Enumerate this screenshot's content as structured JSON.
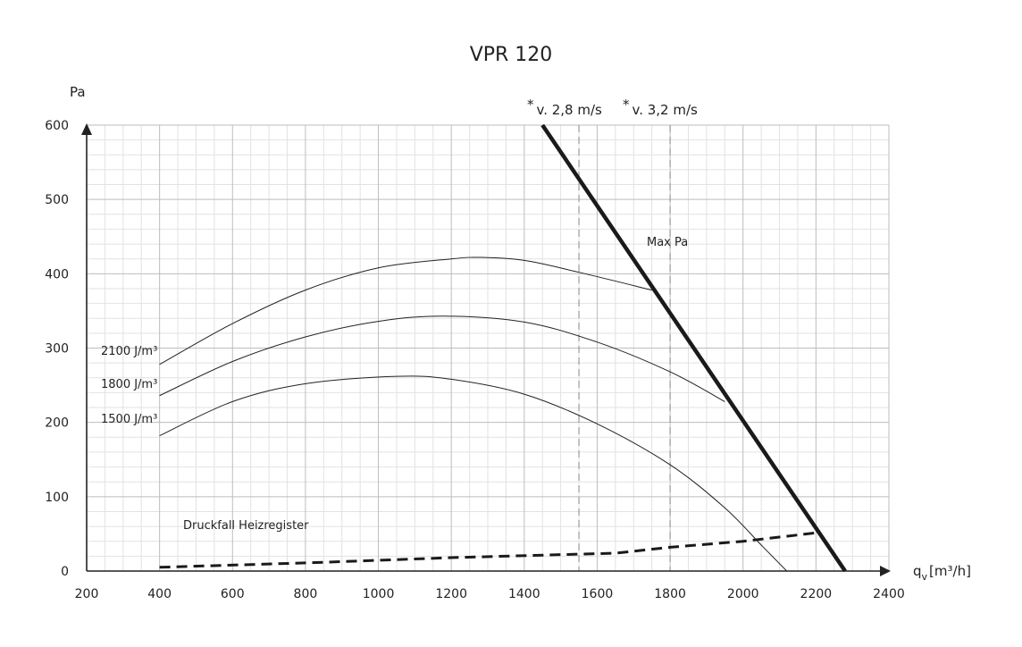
{
  "chart_data": {
    "type": "line",
    "title": "VPR 120",
    "xlabel": "q",
    "xlabel_sub": "v",
    "xlabel_unit": "[m³/h]",
    "ylabel": "Pa",
    "xlim": [
      200,
      2400
    ],
    "ylim": [
      0,
      600
    ],
    "x_ticks": [
      200,
      400,
      600,
      800,
      1000,
      1200,
      1400,
      1600,
      1800,
      2000,
      2200,
      2400
    ],
    "y_ticks": [
      0,
      100,
      200,
      300,
      400,
      500,
      600
    ],
    "grid": true,
    "series": [
      {
        "name": "2100 J/m³",
        "x": [
          400,
          600,
          800,
          1000,
          1200,
          1280,
          1400,
          1550,
          1750
        ],
        "y": [
          278,
          333,
          378,
          408,
          420,
          422,
          418,
          402,
          378
        ]
      },
      {
        "name": "1800 J/m³",
        "x": [
          400,
          600,
          800,
          1000,
          1180,
          1400,
          1600,
          1800,
          1950
        ],
        "y": [
          236,
          282,
          315,
          336,
          343,
          335,
          308,
          268,
          228
        ]
      },
      {
        "name": "1500 J/m³",
        "x": [
          400,
          600,
          800,
          1050,
          1200,
          1400,
          1600,
          1800,
          1950,
          2050,
          2120
        ],
        "y": [
          182,
          228,
          252,
          262,
          258,
          238,
          198,
          143,
          85,
          35,
          0
        ]
      },
      {
        "name": "Druckfall Heizregister",
        "x": [
          400,
          800,
          1200,
          1650,
          1800,
          2000,
          2210
        ],
        "y": [
          5,
          11,
          18,
          24,
          32,
          40,
          52
        ]
      },
      {
        "name": "Max Pa",
        "x": [
          1450,
          2280
        ],
        "y": [
          600,
          0
        ]
      }
    ],
    "velocity_lines": [
      {
        "x": 1550,
        "label": "v. 2,8 m/s",
        "marker": "*"
      },
      {
        "x": 1800,
        "label": "v. 3,2 m/s",
        "marker": "*"
      }
    ]
  }
}
